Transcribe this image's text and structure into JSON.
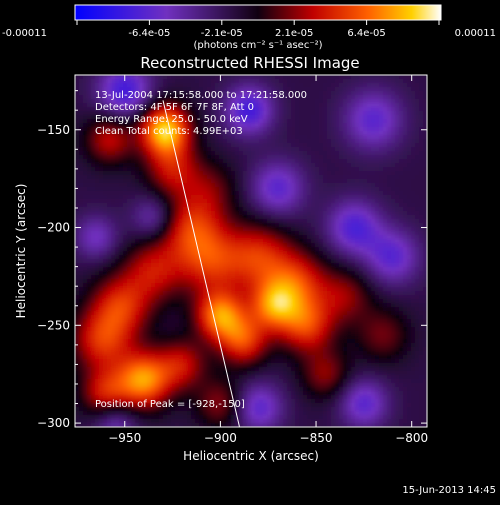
{
  "chart_data": {
    "type": "heatmap",
    "title": "Reconstructed RHESSI Image",
    "xlabel": "Heliocentric X (arcsec)",
    "ylabel": "Heliocentric Y (arcsec)",
    "xlim": [
      -976,
      -792
    ],
    "ylim": [
      -302,
      -122
    ],
    "x_ticks": [
      -950,
      -900,
      -850,
      -800
    ],
    "y_ticks": [
      -150,
      -200,
      -250,
      -300
    ],
    "colorbar": {
      "ticks": [
        "-0.00011",
        "-6.4e-05",
        "-2.1e-05",
        "2.1e-05",
        "6.4e-05",
        "0.00011"
      ],
      "unit_label": "(photons cm⁻² s⁻¹ asec⁻²)",
      "range": [
        -0.00011,
        0.00011
      ]
    },
    "annotations": [
      "13-Jul-2004 17:15:58.000 to 17:21:58.000",
      "Detectors: 4F 5F 6F 7F 8F, Att 0",
      "Energy Range: 25.0 - 50.0 keV",
      "Clean    Total counts: 4.99E+03"
    ],
    "peak_label": "Position of Peak = [-928,-150]",
    "peak": {
      "x": -928,
      "y": -150
    },
    "limb_line": [
      [
        -930,
        -135
      ],
      [
        -890,
        -302
      ]
    ],
    "sources": [
      {
        "x": -929,
        "y": -150,
        "amp": 1.0,
        "s": 9
      },
      {
        "x": -925,
        "y": -170,
        "amp": 0.45,
        "s": 10
      },
      {
        "x": -958,
        "y": -155,
        "amp": 0.45,
        "s": 9
      },
      {
        "x": -915,
        "y": -200,
        "amp": 0.55,
        "s": 12
      },
      {
        "x": -905,
        "y": -218,
        "amp": 0.5,
        "s": 12
      },
      {
        "x": -880,
        "y": -215,
        "amp": 0.55,
        "s": 12
      },
      {
        "x": -860,
        "y": -228,
        "amp": 0.55,
        "s": 11
      },
      {
        "x": -835,
        "y": -235,
        "amp": 0.35,
        "s": 10
      },
      {
        "x": -935,
        "y": -222,
        "amp": 0.45,
        "s": 11
      },
      {
        "x": -952,
        "y": -240,
        "amp": 0.55,
        "s": 11
      },
      {
        "x": -962,
        "y": -258,
        "amp": 0.55,
        "s": 11
      },
      {
        "x": -900,
        "y": -245,
        "amp": 0.8,
        "s": 9
      },
      {
        "x": -872,
        "y": -240,
        "amp": 0.7,
        "s": 9
      },
      {
        "x": -888,
        "y": -258,
        "amp": 0.6,
        "s": 9
      },
      {
        "x": -855,
        "y": -250,
        "amp": 0.6,
        "s": 10
      },
      {
        "x": -940,
        "y": -278,
        "amp": 0.85,
        "s": 10
      },
      {
        "x": -920,
        "y": -270,
        "amp": 0.45,
        "s": 9
      },
      {
        "x": -960,
        "y": -285,
        "amp": 0.5,
        "s": 9
      },
      {
        "x": -845,
        "y": -275,
        "amp": 0.35,
        "s": 9
      },
      {
        "x": -815,
        "y": -255,
        "amp": 0.3,
        "s": 10
      },
      {
        "x": -905,
        "y": -180,
        "amp": 0.25,
        "s": 10
      },
      {
        "x": -900,
        "y": -290,
        "amp": 0.35,
        "s": 9
      },
      {
        "x": -950,
        "y": -130,
        "amp": -0.55,
        "s": 10
      },
      {
        "x": -885,
        "y": -140,
        "amp": -0.55,
        "s": 9
      },
      {
        "x": -820,
        "y": -145,
        "amp": -0.45,
        "s": 11
      },
      {
        "x": -935,
        "y": -195,
        "amp": -0.35,
        "s": 8
      },
      {
        "x": -870,
        "y": -180,
        "amp": -0.45,
        "s": 10
      },
      {
        "x": -830,
        "y": -200,
        "amp": -0.5,
        "s": 10
      },
      {
        "x": -810,
        "y": -215,
        "amp": -0.45,
        "s": 10
      },
      {
        "x": -965,
        "y": -205,
        "amp": -0.35,
        "s": 8
      },
      {
        "x": -880,
        "y": -292,
        "amp": -0.45,
        "s": 9
      },
      {
        "x": -825,
        "y": -290,
        "amp": -0.45,
        "s": 9
      },
      {
        "x": -955,
        "y": -300,
        "amp": -0.35,
        "s": 8
      }
    ]
  },
  "footer": {
    "date": "15-Jun-2013 14:45"
  },
  "colors": {
    "background": "#000000",
    "text": "#ffffff"
  }
}
